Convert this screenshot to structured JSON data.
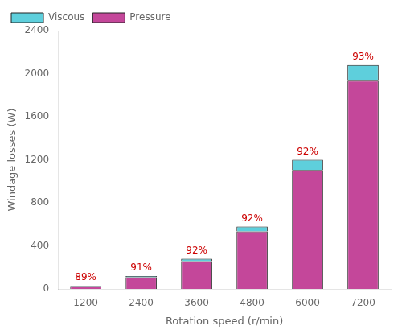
{
  "chart_data": {
    "type": "bar",
    "stacked": true,
    "categories": [
      "1200",
      "2400",
      "3600",
      "4800",
      "6000",
      "7200"
    ],
    "series": [
      {
        "name": "Pressure",
        "color": "#C4479A",
        "values": [
          27,
          109,
          258,
          534,
          1104,
          1934
        ]
      },
      {
        "name": "Viscous",
        "color": "#5ECFDC",
        "values": [
          3,
          11,
          22,
          46,
          96,
          146
        ]
      }
    ],
    "annotations": {
      "texts": [
        "89%",
        "91%",
        "92%",
        "92%",
        "92%",
        "93%"
      ],
      "color": "#CC0000"
    },
    "xlabel": "Rotation speed (r/min)",
    "ylabel": "Windage losses (W)",
    "ylim": [
      0,
      2400
    ],
    "yticks": [
      0,
      400,
      800,
      1200,
      1600,
      2000,
      2400
    ],
    "grid": false,
    "legend": "upper left"
  }
}
